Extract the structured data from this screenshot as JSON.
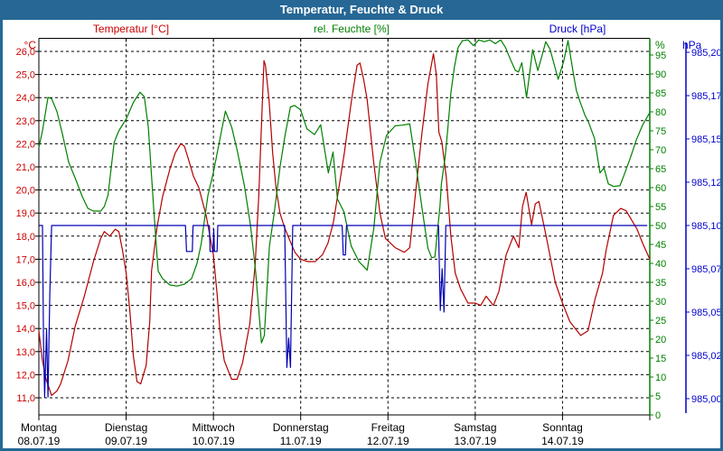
{
  "window": {
    "title": "Temperatur, Feuchte & Druck"
  },
  "legend": [
    {
      "label": "Temperatur [°C]",
      "color": "#cc0000"
    },
    {
      "label": "rel. Feuchte [%]",
      "color": "#008000"
    },
    {
      "label": "Druck [hPa]",
      "color": "#0000cc"
    }
  ],
  "chart_data": {
    "type": "line",
    "title": "Temperatur, Feuchte & Druck",
    "x_axis": {
      "unit_hours_from": "Montag 08.07.19 00:00",
      "range_hours": [
        0,
        168
      ],
      "days": [
        {
          "name": "Montag",
          "date": "08.07.19"
        },
        {
          "name": "Dienstag",
          "date": "09.07.19"
        },
        {
          "name": "Mittwoch",
          "date": "10.07.19"
        },
        {
          "name": "Donnerstag",
          "date": "11.07.19"
        },
        {
          "name": "Freitag",
          "date": "12.07.19"
        },
        {
          "name": "Samstag",
          "date": "13.07.19"
        },
        {
          "name": "Sonntag",
          "date": "14.07.19"
        }
      ]
    },
    "axes": {
      "temp": {
        "unit": "°C",
        "color": "#cc0000",
        "min": 11,
        "max": 26,
        "labels": [
          "26,0",
          "25,0",
          "24,0",
          "23,0",
          "22,0",
          "21,0",
          "20,0",
          "19,0",
          "18,0",
          "17,0",
          "16,0",
          "15,0",
          "14,0",
          "13,0",
          "12,0",
          "11,0"
        ],
        "values": [
          26,
          25,
          24,
          23,
          22,
          21,
          20,
          19,
          18,
          17,
          16,
          15,
          14,
          13,
          12,
          11
        ]
      },
      "hum": {
        "unit": "%",
        "color": "#008000",
        "min": 0,
        "max": 95,
        "labels": [
          "95",
          "90",
          "85",
          "80",
          "75",
          "70",
          "65",
          "60",
          "55",
          "50",
          "45",
          "40",
          "35",
          "30",
          "25",
          "20",
          "15",
          "10",
          "5",
          "0"
        ],
        "values": [
          95,
          90,
          85,
          80,
          75,
          70,
          65,
          60,
          55,
          50,
          45,
          40,
          35,
          30,
          25,
          20,
          15,
          10,
          5,
          0
        ]
      },
      "press": {
        "unit": "hPa",
        "color": "#0000cc",
        "min": 985.0,
        "max": 985.2,
        "labels": [
          "985,20",
          "985,17",
          "985,15",
          "985,12",
          "985,10",
          "985,07",
          "985,05",
          "985,02",
          "985,00"
        ],
        "values": [
          985.2,
          985.175,
          985.15,
          985.125,
          985.1,
          985.075,
          985.05,
          985.025,
          985.0
        ]
      }
    },
    "series": [
      {
        "name": "Temperatur",
        "axis": "temp",
        "color": "#b40000",
        "points": [
          [
            0,
            13.9
          ],
          [
            1,
            12.6
          ],
          [
            2,
            11.8
          ],
          [
            3.5,
            11.1
          ],
          [
            5,
            11.3
          ],
          [
            6,
            11.6
          ],
          [
            8,
            12.6
          ],
          [
            10,
            14.1
          ],
          [
            12.5,
            15.4
          ],
          [
            15,
            16.9
          ],
          [
            17,
            17.9
          ],
          [
            18,
            18.2
          ],
          [
            19.5,
            18.0
          ],
          [
            21,
            18.3
          ],
          [
            22,
            18.2
          ],
          [
            23,
            17.4
          ],
          [
            24,
            16.4
          ],
          [
            25,
            14.8
          ],
          [
            26,
            12.8
          ],
          [
            27,
            11.7
          ],
          [
            28,
            11.6
          ],
          [
            29.5,
            12.4
          ],
          [
            30.5,
            14.3
          ],
          [
            31,
            16.5
          ],
          [
            32.5,
            18.4
          ],
          [
            34,
            19.7
          ],
          [
            36,
            20.9
          ],
          [
            37.5,
            21.6
          ],
          [
            39,
            22.0
          ],
          [
            40,
            21.9
          ],
          [
            41,
            21.4
          ],
          [
            42.5,
            20.6
          ],
          [
            44,
            20.1
          ],
          [
            46,
            18.9
          ],
          [
            48,
            17.2
          ],
          [
            49,
            15.5
          ],
          [
            49.8,
            13.9
          ],
          [
            51,
            12.6
          ],
          [
            53,
            11.8
          ],
          [
            54.5,
            11.8
          ],
          [
            56,
            12.5
          ],
          [
            58,
            14.2
          ],
          [
            59.5,
            16.8
          ],
          [
            60.5,
            19.8
          ],
          [
            61.3,
            23.2
          ],
          [
            61.9,
            25.6
          ],
          [
            62.3,
            25.4
          ],
          [
            63.3,
            23.9
          ],
          [
            64.3,
            21.6
          ],
          [
            65.2,
            20.1
          ],
          [
            66.3,
            19.0
          ],
          [
            67.5,
            18.4
          ],
          [
            68.8,
            17.9
          ],
          [
            70.4,
            17.3
          ],
          [
            72,
            17.0
          ],
          [
            74,
            16.9
          ],
          [
            76,
            16.9
          ],
          [
            78,
            17.2
          ],
          [
            79.5,
            17.7
          ],
          [
            81,
            18.6
          ],
          [
            82,
            19.6
          ],
          [
            84,
            21.6
          ],
          [
            86,
            23.9
          ],
          [
            87.5,
            25.4
          ],
          [
            88.3,
            25.5
          ],
          [
            89.3,
            24.8
          ],
          [
            90.3,
            23.9
          ],
          [
            92,
            21.3
          ],
          [
            93.8,
            19.0
          ],
          [
            95.3,
            17.9
          ],
          [
            96,
            17.8
          ],
          [
            98,
            17.5
          ],
          [
            100.5,
            17.3
          ],
          [
            102,
            17.5
          ],
          [
            103.8,
            20.2
          ],
          [
            105.3,
            22.4
          ],
          [
            107,
            24.6
          ],
          [
            108.5,
            25.9
          ],
          [
            109.3,
            25.0
          ],
          [
            110,
            22.5
          ],
          [
            110.8,
            22.1
          ],
          [
            112,
            20.6
          ],
          [
            113.3,
            18.0
          ],
          [
            114.5,
            16.4
          ],
          [
            116,
            15.7
          ],
          [
            118,
            15.1
          ],
          [
            120,
            15.1
          ],
          [
            121.5,
            15.0
          ],
          [
            123,
            15.4
          ],
          [
            125,
            15.0
          ],
          [
            126.5,
            15.6
          ],
          [
            128.5,
            17.2
          ],
          [
            130.5,
            18.0
          ],
          [
            132,
            17.5
          ],
          [
            133,
            19.3
          ],
          [
            134,
            19.9
          ],
          [
            135.5,
            18.5
          ],
          [
            136.5,
            19.4
          ],
          [
            137.5,
            19.5
          ],
          [
            139.5,
            18.0
          ],
          [
            142,
            16.0
          ],
          [
            144,
            15.1
          ],
          [
            146,
            14.3
          ],
          [
            147.5,
            14.0
          ],
          [
            149,
            13.7
          ],
          [
            151,
            13.9
          ],
          [
            153,
            15.3
          ],
          [
            155,
            16.4
          ],
          [
            156,
            17.4
          ],
          [
            158,
            18.9
          ],
          [
            160,
            19.2
          ],
          [
            161.5,
            19.1
          ],
          [
            163,
            18.7
          ],
          [
            164.5,
            18.3
          ],
          [
            166,
            17.7
          ],
          [
            168,
            17.0
          ]
        ]
      },
      {
        "name": "rel. Feuchte",
        "axis": "hum",
        "color": "#008000",
        "points": [
          [
            0,
            70.6
          ],
          [
            1,
            75
          ],
          [
            2.5,
            83.8
          ],
          [
            3.5,
            83.5
          ],
          [
            5,
            80
          ],
          [
            6.5,
            74
          ],
          [
            8.2,
            66.7
          ],
          [
            10,
            62.5
          ],
          [
            12,
            57.5
          ],
          [
            13.5,
            54.5
          ],
          [
            15,
            53.8
          ],
          [
            17,
            53.8
          ],
          [
            18,
            55
          ],
          [
            19,
            58
          ],
          [
            20.7,
            71.9
          ],
          [
            22,
            75
          ],
          [
            24,
            78.1
          ],
          [
            26,
            82.5
          ],
          [
            27.8,
            85.2
          ],
          [
            29,
            84
          ],
          [
            30.1,
            76
          ],
          [
            31.6,
            54
          ],
          [
            32.8,
            38
          ],
          [
            34,
            36
          ],
          [
            36,
            34.3
          ],
          [
            38,
            34
          ],
          [
            40,
            34.5
          ],
          [
            42,
            36
          ],
          [
            43.5,
            40
          ],
          [
            44.6,
            45
          ],
          [
            46.5,
            58
          ],
          [
            48,
            64
          ],
          [
            49,
            69
          ],
          [
            51.3,
            80.2
          ],
          [
            53,
            76
          ],
          [
            54.5,
            70
          ],
          [
            56.5,
            60.7
          ],
          [
            58.2,
            50
          ],
          [
            59.6,
            38
          ],
          [
            61.2,
            19
          ],
          [
            62,
            21
          ],
          [
            63.4,
            44.5
          ],
          [
            64.7,
            53.1
          ],
          [
            66.4,
            66
          ],
          [
            67.7,
            73.8
          ],
          [
            69.2,
            81.3
          ],
          [
            70.3,
            81.7
          ],
          [
            72,
            80.5
          ],
          [
            73.7,
            75.5
          ],
          [
            75.8,
            74
          ],
          [
            77.5,
            76.6
          ],
          [
            79.6,
            63.9
          ],
          [
            80.9,
            69.4
          ],
          [
            82.1,
            57
          ],
          [
            83.9,
            53.6
          ],
          [
            85.9,
            44.6
          ],
          [
            88,
            40.5
          ],
          [
            90.3,
            38.2
          ],
          [
            92.1,
            49.2
          ],
          [
            93.8,
            66.7
          ],
          [
            95.6,
            73.8
          ],
          [
            98,
            76.3
          ],
          [
            100,
            76.5
          ],
          [
            102,
            76.8
          ],
          [
            103.7,
            66
          ],
          [
            105.3,
            55
          ],
          [
            107,
            44
          ],
          [
            108,
            41.5
          ],
          [
            108.9,
            41.7
          ],
          [
            110.3,
            55
          ],
          [
            110.7,
            61
          ],
          [
            111.7,
            68
          ],
          [
            112.4,
            75
          ],
          [
            113.3,
            85
          ],
          [
            114.3,
            92
          ],
          [
            115.3,
            97
          ],
          [
            116.5,
            98.8
          ],
          [
            118,
            99
          ],
          [
            119.5,
            97.5
          ],
          [
            121,
            99
          ],
          [
            122.5,
            98.5
          ],
          [
            124,
            99
          ],
          [
            125.5,
            98
          ],
          [
            127,
            99
          ],
          [
            128.3,
            97
          ],
          [
            129.6,
            94
          ],
          [
            131,
            91
          ],
          [
            131.9,
            90.5
          ],
          [
            132.8,
            93
          ],
          [
            134.1,
            83.8
          ],
          [
            135.8,
            96.4
          ],
          [
            137.2,
            90.9
          ],
          [
            138.4,
            95
          ],
          [
            139.4,
            98.5
          ],
          [
            140.6,
            96.5
          ],
          [
            142.8,
            88.6
          ],
          [
            144.4,
            93.6
          ],
          [
            145.5,
            98.8
          ],
          [
            147,
            90
          ],
          [
            147.8,
            85.7
          ],
          [
            148.6,
            83.3
          ],
          [
            150.2,
            79
          ],
          [
            151.1,
            77.4
          ],
          [
            152.8,
            73
          ],
          [
            154.3,
            63.9
          ],
          [
            155.4,
            65.2
          ],
          [
            156.6,
            61
          ],
          [
            158,
            60.3
          ],
          [
            159.8,
            60.5
          ],
          [
            161,
            63.5
          ],
          [
            162.7,
            68
          ],
          [
            164.3,
            72.6
          ],
          [
            166,
            76.5
          ],
          [
            168,
            79.8
          ]
        ]
      },
      {
        "name": "Druck",
        "axis": "press",
        "color": "#0000b4",
        "points": [
          [
            0,
            985.1
          ],
          [
            1.0,
            985.1
          ],
          [
            1.3,
            985.03
          ],
          [
            1.6,
            985.001
          ],
          [
            2.1,
            985.04
          ],
          [
            2.5,
            985.001
          ],
          [
            3.0,
            985.06
          ],
          [
            3.5,
            985.1
          ],
          [
            40.3,
            985.1
          ],
          [
            40.6,
            985.085
          ],
          [
            42.2,
            985.085
          ],
          [
            42.4,
            985.1
          ],
          [
            46.9,
            985.1
          ],
          [
            47.1,
            985.085
          ],
          [
            47.9,
            985.085
          ],
          [
            48.1,
            985.098
          ],
          [
            48.3,
            985.085
          ],
          [
            49.0,
            985.085
          ],
          [
            49.2,
            985.1
          ],
          [
            67.6,
            985.1
          ],
          [
            68.2,
            985.018
          ],
          [
            68.7,
            985.035
          ],
          [
            69.2,
            985.018
          ],
          [
            69.8,
            985.1
          ],
          [
            83.4,
            985.1
          ],
          [
            83.7,
            985.083
          ],
          [
            84.3,
            985.083
          ],
          [
            84.6,
            985.1
          ],
          [
            109.9,
            985.1
          ],
          [
            110.1,
            985.08
          ],
          [
            110.4,
            985.051
          ],
          [
            110.9,
            985.075
          ],
          [
            111.4,
            985.05
          ],
          [
            111.9,
            985.1
          ],
          [
            167.3,
            985.1
          ]
        ]
      }
    ],
    "grid": {
      "horizontal_step_temp": 1.0,
      "vertical_step_hours": 24,
      "style": "dashed-black"
    },
    "legend_position": "top"
  }
}
